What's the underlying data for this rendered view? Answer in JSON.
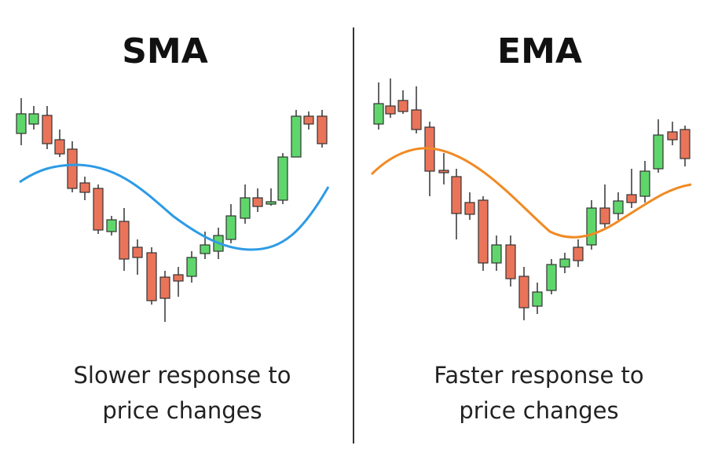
{
  "left": {
    "title": "SMA",
    "caption": [
      "Slower response to",
      "price changes"
    ]
  },
  "right": {
    "title": "EMA",
    "caption": [
      "Faster response to",
      "price changes"
    ]
  }
}
